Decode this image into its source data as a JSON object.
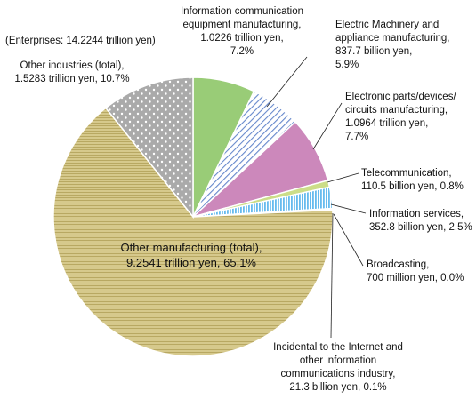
{
  "chart_data": {
    "type": "pie",
    "total_note": "(Enterprises: 14.2244 trillion yen)",
    "slices": [
      {
        "name": "Information communication equipment manufacturing",
        "value": 1.0226,
        "percent": 7.2,
        "label_lines": [
          "Information communication",
          "equipment manufacturing,",
          "1.0226 trillion yen,",
          "7.2%"
        ],
        "color": "#99cc77",
        "pattern": "solid"
      },
      {
        "name": "Electric Machinery and appliance manufacturing",
        "value": 0.8377,
        "percent": 5.9,
        "label_lines": [
          "Electric Machinery and",
          "appliance manufacturing,",
          "837.7 billion yen,",
          "5.9%"
        ],
        "color": "#6688cc",
        "pattern": "diagonal"
      },
      {
        "name": "Electronic parts/devices/circuits manufacturing",
        "value": 1.0964,
        "percent": 7.7,
        "label_lines": [
          "Electronic parts/devices/",
          "circuits manufacturing,",
          "1.0964 trillion yen,",
          "7.7%"
        ],
        "color": "#cc88bb",
        "pattern": "solid"
      },
      {
        "name": "Telecommunication",
        "value": 0.1105,
        "percent": 0.8,
        "label_lines": [
          "Telecommunication,",
          "110.5 billion yen, 0.8%"
        ],
        "color": "#ccdd88",
        "pattern": "solid"
      },
      {
        "name": "Information services",
        "value": 0.3528,
        "percent": 2.5,
        "label_lines": [
          "Information services,",
          "352.8 billion yen, 2.5%"
        ],
        "color": "#66bbee",
        "pattern": "vertical"
      },
      {
        "name": "Broadcasting",
        "value": 0.0007,
        "percent": 0.0,
        "label_lines": [
          "Broadcasting,",
          "700 million yen, 0.0%"
        ],
        "color": "#888888",
        "pattern": "solid"
      },
      {
        "name": "Incidental to the Internet and other information communications industry",
        "value": 0.0213,
        "percent": 0.1,
        "label_lines": [
          "Incidental to the Internet and",
          "other information",
          "communications industry,",
          "21.3 billion yen, 0.1%"
        ],
        "color": "#444444",
        "pattern": "solid"
      },
      {
        "name": "Other manufacturing (total)",
        "value": 9.2541,
        "percent": 65.1,
        "label_lines": [
          "Other manufacturing (total),",
          "9.2541 trillion yen, 65.1%"
        ],
        "color": "#ccbb77",
        "pattern": "hstripe"
      },
      {
        "name": "Other industries (total)",
        "value": 1.5283,
        "percent": 10.7,
        "label_lines": [
          "Other industries (total),",
          "1.5283 trillion yen, 10.7%"
        ],
        "color": "#aaaaaa",
        "pattern": "dots"
      }
    ]
  }
}
